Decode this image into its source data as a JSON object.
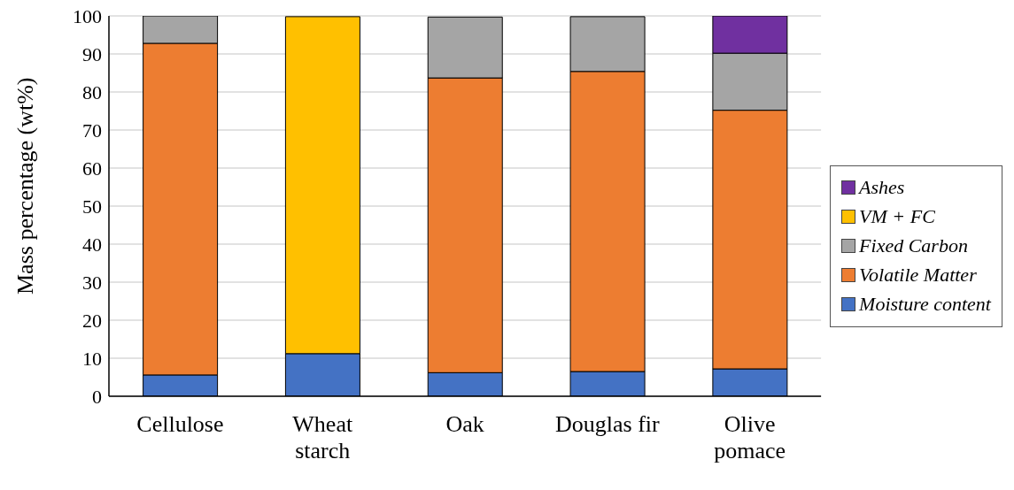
{
  "chart_data": {
    "type": "bar",
    "stacked": true,
    "ylabel": "Mass percentage (wt%)",
    "categories": [
      "Cellulose",
      "Wheat starch",
      "Oak",
      "Douglas fir",
      "Olive pomace"
    ],
    "series": [
      {
        "name": "Moisture content",
        "color": "#4472c4",
        "values": [
          5.6,
          11.2,
          6.2,
          6.5,
          7.2
        ]
      },
      {
        "name": "Volatile Matter",
        "color": "#ed7d31",
        "values": [
          87.2,
          null,
          77.5,
          78.9,
          68.0
        ]
      },
      {
        "name": "Fixed Carbon",
        "color": "#a5a5a5",
        "values": [
          7.2,
          null,
          16.0,
          14.4,
          15.0
        ]
      },
      {
        "name": "VM + FC",
        "color": "#ffc000",
        "values": [
          null,
          88.6,
          null,
          null,
          null
        ]
      },
      {
        "name": "Ashes",
        "color": "#7030a0",
        "values": [
          null,
          null,
          null,
          null,
          9.8
        ]
      }
    ],
    "ylim": [
      0,
      100
    ],
    "yticks": [
      0,
      10,
      20,
      30,
      40,
      50,
      60,
      70,
      80,
      90,
      100
    ],
    "grid": "y",
    "legend": "right"
  }
}
